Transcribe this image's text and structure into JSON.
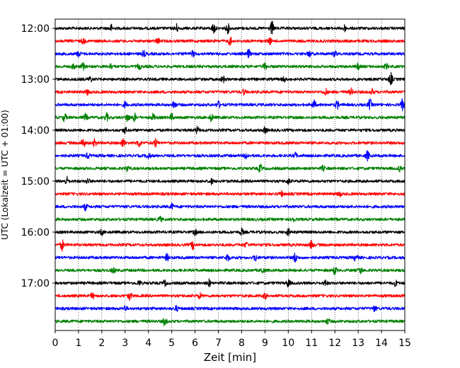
{
  "chart_data": {
    "type": "line",
    "title": "",
    "xlabel": "Zeit  [min]",
    "ylabel": "UTC (Lokalzeit = UTC + 01:00)",
    "xlim": [
      0,
      15
    ],
    "x_ticks": [
      "0",
      "1",
      "2",
      "3",
      "4",
      "5",
      "6",
      "7",
      "8",
      "9",
      "10",
      "11",
      "12",
      "13",
      "14",
      "15"
    ],
    "y_tick_labels": [
      "12:00",
      "13:00",
      "14:00",
      "15:00",
      "16:00",
      "17:00"
    ],
    "grid": "vertical dotted at each minute",
    "legend": "none",
    "trace_minutes": 15,
    "start_time": "12:00",
    "end_time": "17:45",
    "colors_cycle": [
      "#000000",
      "#ff0000",
      "#0000ff",
      "#008000"
    ],
    "series": [
      {
        "start": "12:00",
        "color": "#000000",
        "bursts": [
          [
            2.4,
            0.5
          ],
          [
            5.2,
            0.6
          ],
          [
            6.8,
            0.8
          ],
          [
            7.4,
            0.7
          ],
          [
            9.3,
            1.0
          ],
          [
            12.4,
            0.5
          ]
        ]
      },
      {
        "start": "12:15",
        "color": "#ff0000",
        "bursts": [
          [
            1.2,
            0.4
          ],
          [
            4.4,
            0.4
          ],
          [
            7.5,
            0.6
          ],
          [
            9.2,
            0.5
          ]
        ]
      },
      {
        "start": "12:30",
        "color": "#0000ff",
        "bursts": [
          [
            1.0,
            0.4
          ],
          [
            3.8,
            0.4
          ],
          [
            5.9,
            0.4
          ],
          [
            8.3,
            0.6
          ],
          [
            10.9,
            0.4
          ],
          [
            12.0,
            0.4
          ]
        ]
      },
      {
        "start": "12:45",
        "color": "#008000",
        "bursts": [
          [
            0.8,
            0.5
          ],
          [
            1.2,
            0.5
          ],
          [
            2.4,
            0.4
          ],
          [
            3.6,
            0.4
          ],
          [
            9.0,
            0.5
          ],
          [
            13.0,
            0.4
          ],
          [
            14.2,
            0.4
          ]
        ]
      },
      {
        "start": "13:00",
        "color": "#000000",
        "bursts": [
          [
            1.5,
            0.4
          ],
          [
            7.2,
            0.5
          ],
          [
            9.8,
            0.4
          ],
          [
            14.4,
            0.9
          ]
        ]
      },
      {
        "start": "13:15",
        "color": "#ff0000",
        "bursts": [
          [
            1.4,
            0.4
          ],
          [
            8.1,
            0.4
          ],
          [
            11.6,
            0.5
          ],
          [
            12.7,
            0.5
          ],
          [
            13.6,
            0.4
          ]
        ]
      },
      {
        "start": "13:30",
        "color": "#0000ff",
        "bursts": [
          [
            3.0,
            0.4
          ],
          [
            5.1,
            0.6
          ],
          [
            7.0,
            0.5
          ],
          [
            11.1,
            0.7
          ],
          [
            12.1,
            0.6
          ],
          [
            13.5,
            0.8
          ],
          [
            14.9,
            0.8
          ]
        ]
      },
      {
        "start": "13:45",
        "color": "#008000",
        "bursts": [
          [
            0.4,
            0.6
          ],
          [
            1.3,
            0.5
          ],
          [
            2.2,
            0.6
          ],
          [
            3.1,
            0.7
          ],
          [
            3.4,
            0.6
          ],
          [
            4.2,
            0.5
          ],
          [
            5.0,
            0.5
          ],
          [
            6.7,
            0.5
          ]
        ]
      },
      {
        "start": "14:00",
        "color": "#000000",
        "bursts": [
          [
            3.0,
            0.4
          ],
          [
            6.1,
            0.5
          ],
          [
            9.0,
            0.4
          ]
        ]
      },
      {
        "start": "14:15",
        "color": "#ff0000",
        "bursts": [
          [
            1.2,
            0.8
          ],
          [
            1.7,
            0.5
          ],
          [
            2.9,
            0.6
          ],
          [
            3.6,
            0.6
          ],
          [
            4.3,
            0.6
          ]
        ]
      },
      {
        "start": "14:30",
        "color": "#0000ff",
        "bursts": [
          [
            1.4,
            0.4
          ],
          [
            4.0,
            0.5
          ],
          [
            8.2,
            0.5
          ],
          [
            10.3,
            0.4
          ],
          [
            13.4,
            0.7
          ]
        ]
      },
      {
        "start": "14:45",
        "color": "#008000",
        "bursts": [
          [
            3.1,
            0.4
          ],
          [
            8.8,
            0.6
          ],
          [
            11.5,
            0.4
          ],
          [
            14.8,
            0.4
          ]
        ]
      },
      {
        "start": "15:00",
        "color": "#000000",
        "bursts": [
          [
            0.5,
            0.6
          ],
          [
            1.4,
            0.4
          ],
          [
            6.7,
            0.4
          ],
          [
            10.0,
            0.4
          ]
        ]
      },
      {
        "start": "15:15",
        "color": "#ff0000",
        "bursts": [
          [
            9.7,
            0.4
          ],
          [
            12.2,
            0.4
          ]
        ]
      },
      {
        "start": "15:30",
        "color": "#0000ff",
        "bursts": [
          [
            1.3,
            0.5
          ],
          [
            5.0,
            0.4
          ]
        ]
      },
      {
        "start": "15:45",
        "color": "#008000",
        "bursts": [
          [
            4.5,
            0.4
          ],
          [
            10.2,
            0.4
          ]
        ]
      },
      {
        "start": "16:00",
        "color": "#000000",
        "bursts": [
          [
            2.0,
            0.4
          ],
          [
            6.0,
            0.4
          ],
          [
            8.0,
            0.5
          ],
          [
            10.0,
            0.5
          ]
        ]
      },
      {
        "start": "16:15",
        "color": "#ff0000",
        "bursts": [
          [
            0.3,
            0.8
          ],
          [
            5.9,
            0.6
          ],
          [
            8.2,
            0.4
          ],
          [
            11.0,
            0.6
          ]
        ]
      },
      {
        "start": "16:30",
        "color": "#0000ff",
        "bursts": [
          [
            4.8,
            0.5
          ],
          [
            7.4,
            0.6
          ],
          [
            8.6,
            0.5
          ],
          [
            10.3,
            0.7
          ],
          [
            12.9,
            0.6
          ]
        ]
      },
      {
        "start": "16:45",
        "color": "#008000",
        "bursts": [
          [
            2.5,
            0.4
          ],
          [
            8.9,
            0.4
          ],
          [
            12.0,
            0.6
          ],
          [
            13.1,
            0.5
          ]
        ]
      },
      {
        "start": "17:00",
        "color": "#000000",
        "bursts": [
          [
            3.6,
            0.4
          ],
          [
            4.7,
            0.4
          ],
          [
            6.6,
            0.5
          ],
          [
            10.0,
            0.6
          ],
          [
            11.6,
            0.4
          ],
          [
            14.6,
            0.4
          ]
        ]
      },
      {
        "start": "17:15",
        "color": "#ff0000",
        "bursts": [
          [
            1.6,
            0.4
          ],
          [
            3.2,
            0.6
          ],
          [
            6.2,
            0.4
          ],
          [
            9.0,
            0.4
          ]
        ]
      },
      {
        "start": "17:30",
        "color": "#0000ff",
        "bursts": [
          [
            3.0,
            0.4
          ],
          [
            5.2,
            0.4
          ],
          [
            13.7,
            0.4
          ]
        ]
      },
      {
        "start": "17:45",
        "color": "#008000",
        "bursts": [
          [
            4.7,
            0.6
          ],
          [
            11.7,
            0.4
          ]
        ]
      }
    ]
  }
}
